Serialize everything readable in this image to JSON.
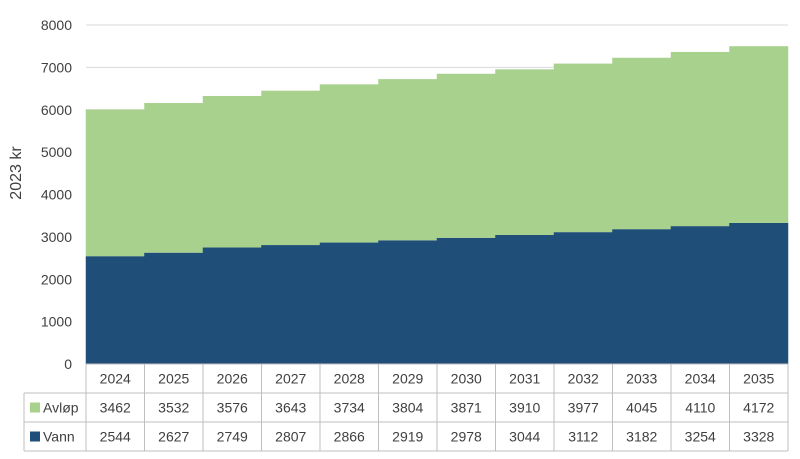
{
  "chart_data": {
    "type": "bar",
    "stacked": true,
    "ylabel": "2023 kr",
    "ylim": [
      0,
      8000
    ],
    "yticks": [
      0,
      1000,
      2000,
      3000,
      4000,
      5000,
      6000,
      7000,
      8000
    ],
    "grid": true,
    "legend": "data-table",
    "categories": [
      "2024",
      "2025",
      "2026",
      "2027",
      "2028",
      "2029",
      "2030",
      "2031",
      "2032",
      "2033",
      "2034",
      "2035"
    ],
    "series": [
      {
        "name": "Avløp",
        "color": "#a9d18e",
        "values": [
          3462,
          3532,
          3576,
          3643,
          3734,
          3804,
          3871,
          3910,
          3977,
          4045,
          4110,
          4172
        ]
      },
      {
        "name": "Vann",
        "color": "#1f4e79",
        "values": [
          2544,
          2627,
          2749,
          2807,
          2866,
          2919,
          2978,
          3044,
          3112,
          3182,
          3254,
          3328
        ]
      }
    ]
  }
}
